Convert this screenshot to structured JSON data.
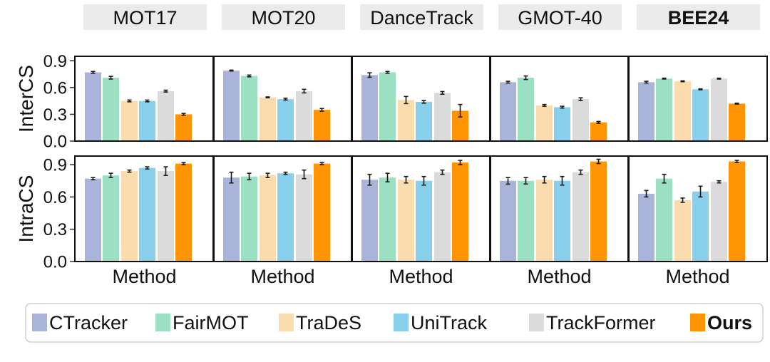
{
  "chart_data": {
    "type": "bar",
    "layout": "facet-grid",
    "panels": [
      "MOT17",
      "MOT20",
      "DanceTrack",
      "GMOT-40",
      "BEE24"
    ],
    "bold_panel": "BEE24",
    "rows": [
      {
        "ylabel": "InterCS",
        "ylim": [
          0,
          0.95
        ],
        "yticks": [
          "0.0",
          "0.3",
          "0.6",
          "0.9"
        ],
        "ytick_values": [
          0,
          0.3,
          0.6,
          0.9
        ],
        "values": {
          "MOT17": [
            0.77,
            0.71,
            0.45,
            0.45,
            0.56,
            0.3
          ],
          "MOT20": [
            0.79,
            0.73,
            0.49,
            0.47,
            0.56,
            0.35
          ],
          "DanceTrack": [
            0.74,
            0.77,
            0.46,
            0.44,
            0.54,
            0.34
          ],
          "GMOT-40": [
            0.66,
            0.71,
            0.4,
            0.38,
            0.47,
            0.21
          ],
          "BEE24": [
            0.66,
            0.7,
            0.67,
            0.58,
            0.7,
            0.42
          ]
        },
        "errors": {
          "MOT17": [
            0.01,
            0.015,
            0.01,
            0.01,
            0.01,
            0.01
          ],
          "MOT20": [
            0.005,
            0.01,
            0.005,
            0.01,
            0.02,
            0.015
          ],
          "DanceTrack": [
            0.025,
            0.01,
            0.04,
            0.015,
            0.015,
            0.07
          ],
          "GMOT-40": [
            0.01,
            0.02,
            0.01,
            0.01,
            0.015,
            0.01
          ],
          "BEE24": [
            0.01,
            0.005,
            0.005,
            0.005,
            0.005,
            0.005
          ]
        }
      },
      {
        "ylabel": "IntraCS",
        "ylim": [
          0,
          0.98
        ],
        "yticks": [
          "0.0",
          "0.3",
          "0.6",
          "0.9"
        ],
        "ytick_values": [
          0,
          0.3,
          0.6,
          0.9
        ],
        "values": {
          "MOT17": [
            0.77,
            0.8,
            0.84,
            0.87,
            0.84,
            0.91
          ],
          "MOT20": [
            0.78,
            0.79,
            0.8,
            0.82,
            0.81,
            0.91
          ],
          "DanceTrack": [
            0.76,
            0.78,
            0.76,
            0.75,
            0.83,
            0.92
          ],
          "GMOT-40": [
            0.75,
            0.75,
            0.76,
            0.75,
            0.83,
            0.93
          ],
          "BEE24": [
            0.63,
            0.77,
            0.57,
            0.65,
            0.74,
            0.93
          ]
        },
        "errors": {
          "MOT17": [
            0.01,
            0.02,
            0.01,
            0.01,
            0.04,
            0.01
          ],
          "MOT20": [
            0.05,
            0.03,
            0.02,
            0.01,
            0.04,
            0.01
          ],
          "DanceTrack": [
            0.05,
            0.04,
            0.03,
            0.04,
            0.02,
            0.02
          ],
          "GMOT-40": [
            0.03,
            0.03,
            0.03,
            0.04,
            0.02,
            0.02
          ],
          "BEE24": [
            0.03,
            0.04,
            0.02,
            0.05,
            0.01,
            0.01
          ]
        }
      }
    ],
    "xlabel": "Method",
    "series": [
      {
        "name": "CTracker",
        "color": "#aab4da"
      },
      {
        "name": "FairMOT",
        "color": "#9be0c2"
      },
      {
        "name": "TraDeS",
        "color": "#fbdcae"
      },
      {
        "name": "UniTrack",
        "color": "#88cfec"
      },
      {
        "name": "TrackFormer",
        "color": "#dbdbdb"
      },
      {
        "name": "Ours",
        "color": "#ff9505",
        "bold": true
      }
    ],
    "legend_position": "bottom",
    "grid": false
  }
}
